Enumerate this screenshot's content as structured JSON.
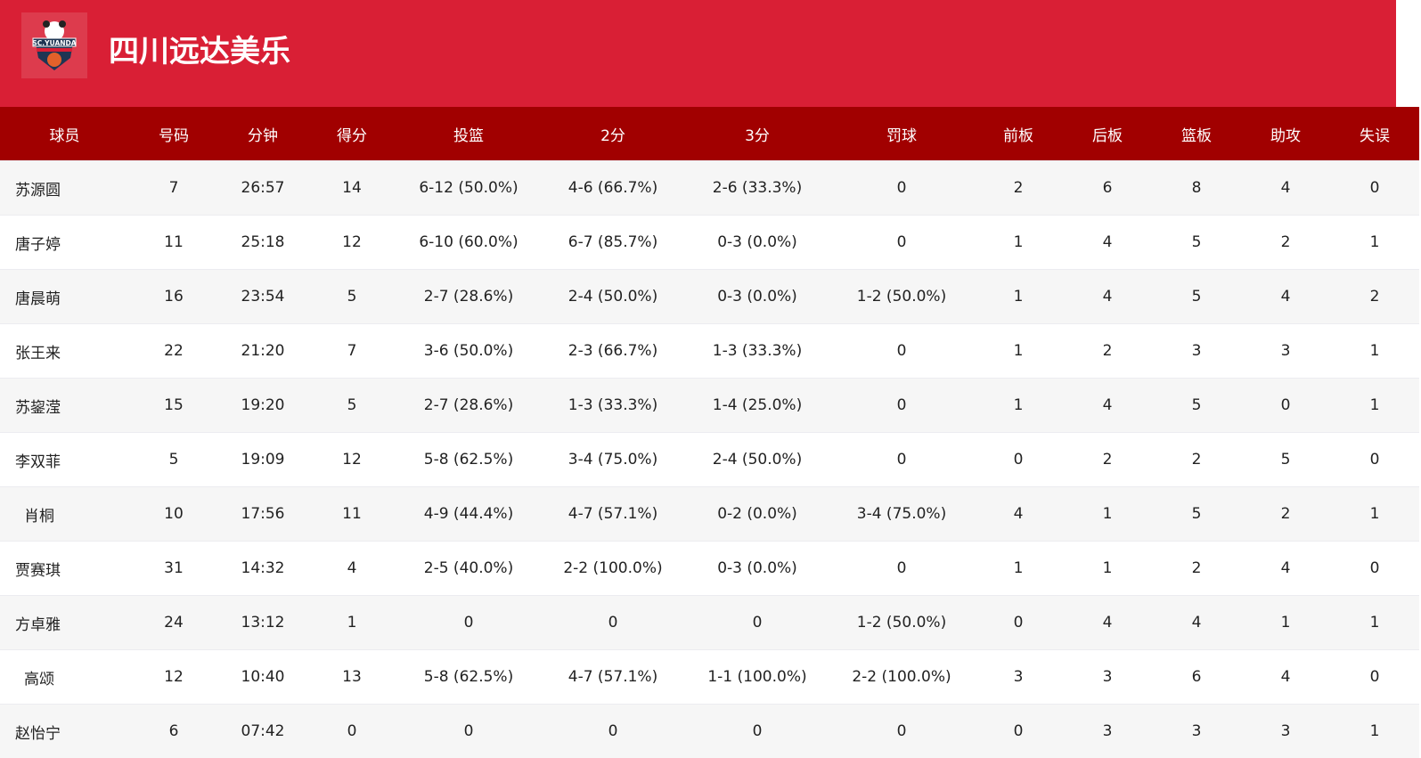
{
  "team": {
    "name": "四川远达美乐",
    "logo_text": "SC.YUANDA"
  },
  "columns": [
    "球员",
    "号码",
    "分钟",
    "得分",
    "投篮",
    "2分",
    "3分",
    "罚球",
    "前板",
    "后板",
    "篮板",
    "助攻",
    "失误"
  ],
  "rows": [
    [
      "苏源圆",
      "7",
      "26:57",
      "14",
      "6-12 (50.0%)",
      "4-6 (66.7%)",
      "2-6 (33.3%)",
      "0",
      "2",
      "6",
      "8",
      "4",
      "0"
    ],
    [
      "唐子婷",
      "11",
      "25:18",
      "12",
      "6-10 (60.0%)",
      "6-7 (85.7%)",
      "0-3 (0.0%)",
      "0",
      "1",
      "4",
      "5",
      "2",
      "1"
    ],
    [
      "唐晨萌",
      "16",
      "23:54",
      "5",
      "2-7 (28.6%)",
      "2-4 (50.0%)",
      "0-3 (0.0%)",
      "1-2 (50.0%)",
      "1",
      "4",
      "5",
      "4",
      "2"
    ],
    [
      "张王来",
      "22",
      "21:20",
      "7",
      "3-6 (50.0%)",
      "2-3 (66.7%)",
      "1-3 (33.3%)",
      "0",
      "1",
      "2",
      "3",
      "3",
      "1"
    ],
    [
      "苏鋆滢",
      "15",
      "19:20",
      "5",
      "2-7 (28.6%)",
      "1-3 (33.3%)",
      "1-4 (25.0%)",
      "0",
      "1",
      "4",
      "5",
      "0",
      "1"
    ],
    [
      "李双菲",
      "5",
      "19:09",
      "12",
      "5-8 (62.5%)",
      "3-4 (75.0%)",
      "2-4 (50.0%)",
      "0",
      "0",
      "2",
      "2",
      "5",
      "0"
    ],
    [
      "肖桐",
      "10",
      "17:56",
      "11",
      "4-9 (44.4%)",
      "4-7 (57.1%)",
      "0-2 (0.0%)",
      "3-4 (75.0%)",
      "4",
      "1",
      "5",
      "2",
      "1"
    ],
    [
      "贾赛琪",
      "31",
      "14:32",
      "4",
      "2-5 (40.0%)",
      "2-2 (100.0%)",
      "0-3 (0.0%)",
      "0",
      "1",
      "1",
      "2",
      "4",
      "0"
    ],
    [
      "方卓雅",
      "24",
      "13:12",
      "1",
      "0",
      "0",
      "0",
      "1-2 (50.0%)",
      "0",
      "4",
      "4",
      "1",
      "1"
    ],
    [
      "高颂",
      "12",
      "10:40",
      "13",
      "5-8 (62.5%)",
      "4-7 (57.1%)",
      "1-1 (100.0%)",
      "2-2 (100.0%)",
      "3",
      "3",
      "6",
      "4",
      "0"
    ],
    [
      "赵怡宁",
      "6",
      "07:42",
      "0",
      "0",
      "0",
      "0",
      "0",
      "0",
      "3",
      "3",
      "3",
      "1"
    ]
  ]
}
